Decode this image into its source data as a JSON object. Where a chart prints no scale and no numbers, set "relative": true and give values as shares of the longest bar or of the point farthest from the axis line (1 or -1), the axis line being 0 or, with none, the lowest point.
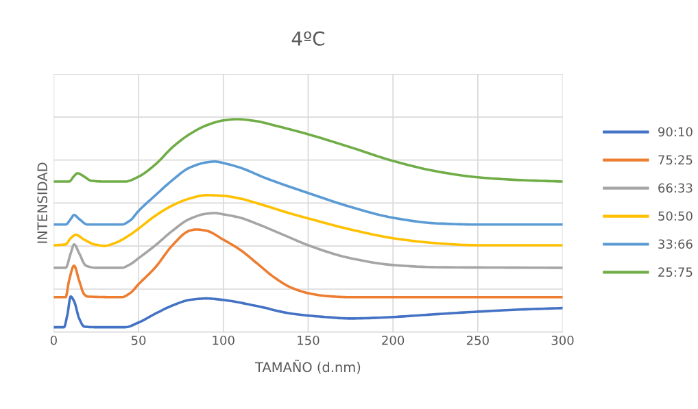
{
  "chart_data": {
    "type": "line",
    "title": "4ºC",
    "xlabel": "TAMAÑO (d.nm)",
    "ylabel": "INTENSIDAD",
    "relative": true,
    "xlim": [
      0,
      300
    ],
    "xticks": [
      0,
      50,
      100,
      150,
      200,
      250,
      300
    ],
    "grid": true,
    "legend": "right",
    "tick_labels": "x",
    "marker": "none",
    "line_style": "solid",
    "series": [
      {
        "name": "90:10",
        "color": "#4472c4",
        "x": [
          0,
          6,
          8,
          10,
          12,
          15,
          18,
          25,
          42,
          50,
          60,
          70,
          80,
          90,
          100,
          120,
          140,
          160,
          175,
          200,
          225,
          250,
          275,
          300
        ],
        "values": [
          0.023,
          0.023,
          0.08,
          0.167,
          0.145,
          0.064,
          0.026,
          0.023,
          0.023,
          0.045,
          0.087,
          0.125,
          0.151,
          0.158,
          0.151,
          0.122,
          0.087,
          0.071,
          0.064,
          0.071,
          0.084,
          0.096,
          0.106,
          0.113
        ]
      },
      {
        "name": "75:25",
        "color": "#ed7d31",
        "x": [
          0,
          7,
          9,
          12,
          15,
          18,
          20,
          40,
          45,
          50,
          60,
          70,
          80,
          84,
          90,
          100,
          110,
          120,
          130,
          140,
          150,
          160,
          175,
          200,
          300
        ],
        "values": [
          0.164,
          0.164,
          0.241,
          0.312,
          0.241,
          0.177,
          0.167,
          0.164,
          0.183,
          0.225,
          0.305,
          0.408,
          0.476,
          0.482,
          0.476,
          0.434,
          0.386,
          0.322,
          0.257,
          0.209,
          0.183,
          0.17,
          0.164,
          0.164,
          0.164
        ]
      },
      {
        "name": "66:33",
        "color": "#a5a5a5",
        "x": [
          0,
          7,
          10,
          12,
          15,
          19,
          25,
          40,
          45,
          50,
          60,
          70,
          80,
          90,
          95,
          100,
          110,
          120,
          140,
          150,
          175,
          200,
          225,
          300
        ],
        "values": [
          0.302,
          0.302,
          0.37,
          0.412,
          0.37,
          0.312,
          0.302,
          0.302,
          0.318,
          0.347,
          0.408,
          0.476,
          0.531,
          0.556,
          0.559,
          0.553,
          0.537,
          0.508,
          0.441,
          0.408,
          0.347,
          0.315,
          0.305,
          0.302
        ]
      },
      {
        "name": "50:50",
        "color": "#ffc000",
        "x": [
          0,
          7,
          10,
          13,
          18,
          24,
          30,
          36,
          45,
          50,
          60,
          70,
          80,
          90,
          100,
          110,
          120,
          140,
          150,
          175,
          200,
          225,
          250,
          300
        ],
        "values": [
          0.408,
          0.412,
          0.441,
          0.457,
          0.434,
          0.412,
          0.405,
          0.418,
          0.457,
          0.486,
          0.547,
          0.595,
          0.627,
          0.643,
          0.64,
          0.627,
          0.605,
          0.556,
          0.534,
          0.482,
          0.441,
          0.418,
          0.408,
          0.408
        ]
      },
      {
        "name": "33:66",
        "color": "#5b9bd5",
        "x": [
          0,
          7,
          10,
          12,
          15,
          20,
          40,
          45,
          50,
          60,
          70,
          80,
          90,
          95,
          100,
          110,
          125,
          150,
          175,
          200,
          225,
          250,
          300
        ],
        "values": [
          0.505,
          0.505,
          0.531,
          0.55,
          0.531,
          0.505,
          0.505,
          0.524,
          0.569,
          0.643,
          0.714,
          0.772,
          0.797,
          0.801,
          0.794,
          0.772,
          0.723,
          0.653,
          0.588,
          0.537,
          0.511,
          0.505,
          0.505
        ]
      },
      {
        "name": "25:75",
        "color": "#70ad47",
        "x": [
          0,
          9,
          12,
          14,
          18,
          22,
          30,
          42,
          50,
          60,
          70,
          80,
          90,
          100,
          108,
          120,
          130,
          150,
          175,
          200,
          225,
          250,
          275,
          300
        ],
        "values": [
          0.707,
          0.707,
          0.733,
          0.746,
          0.73,
          0.711,
          0.707,
          0.707,
          0.73,
          0.788,
          0.868,
          0.929,
          0.971,
          0.994,
          1,
          0.99,
          0.971,
          0.929,
          0.868,
          0.804,
          0.756,
          0.727,
          0.714,
          0.707
        ]
      }
    ]
  }
}
